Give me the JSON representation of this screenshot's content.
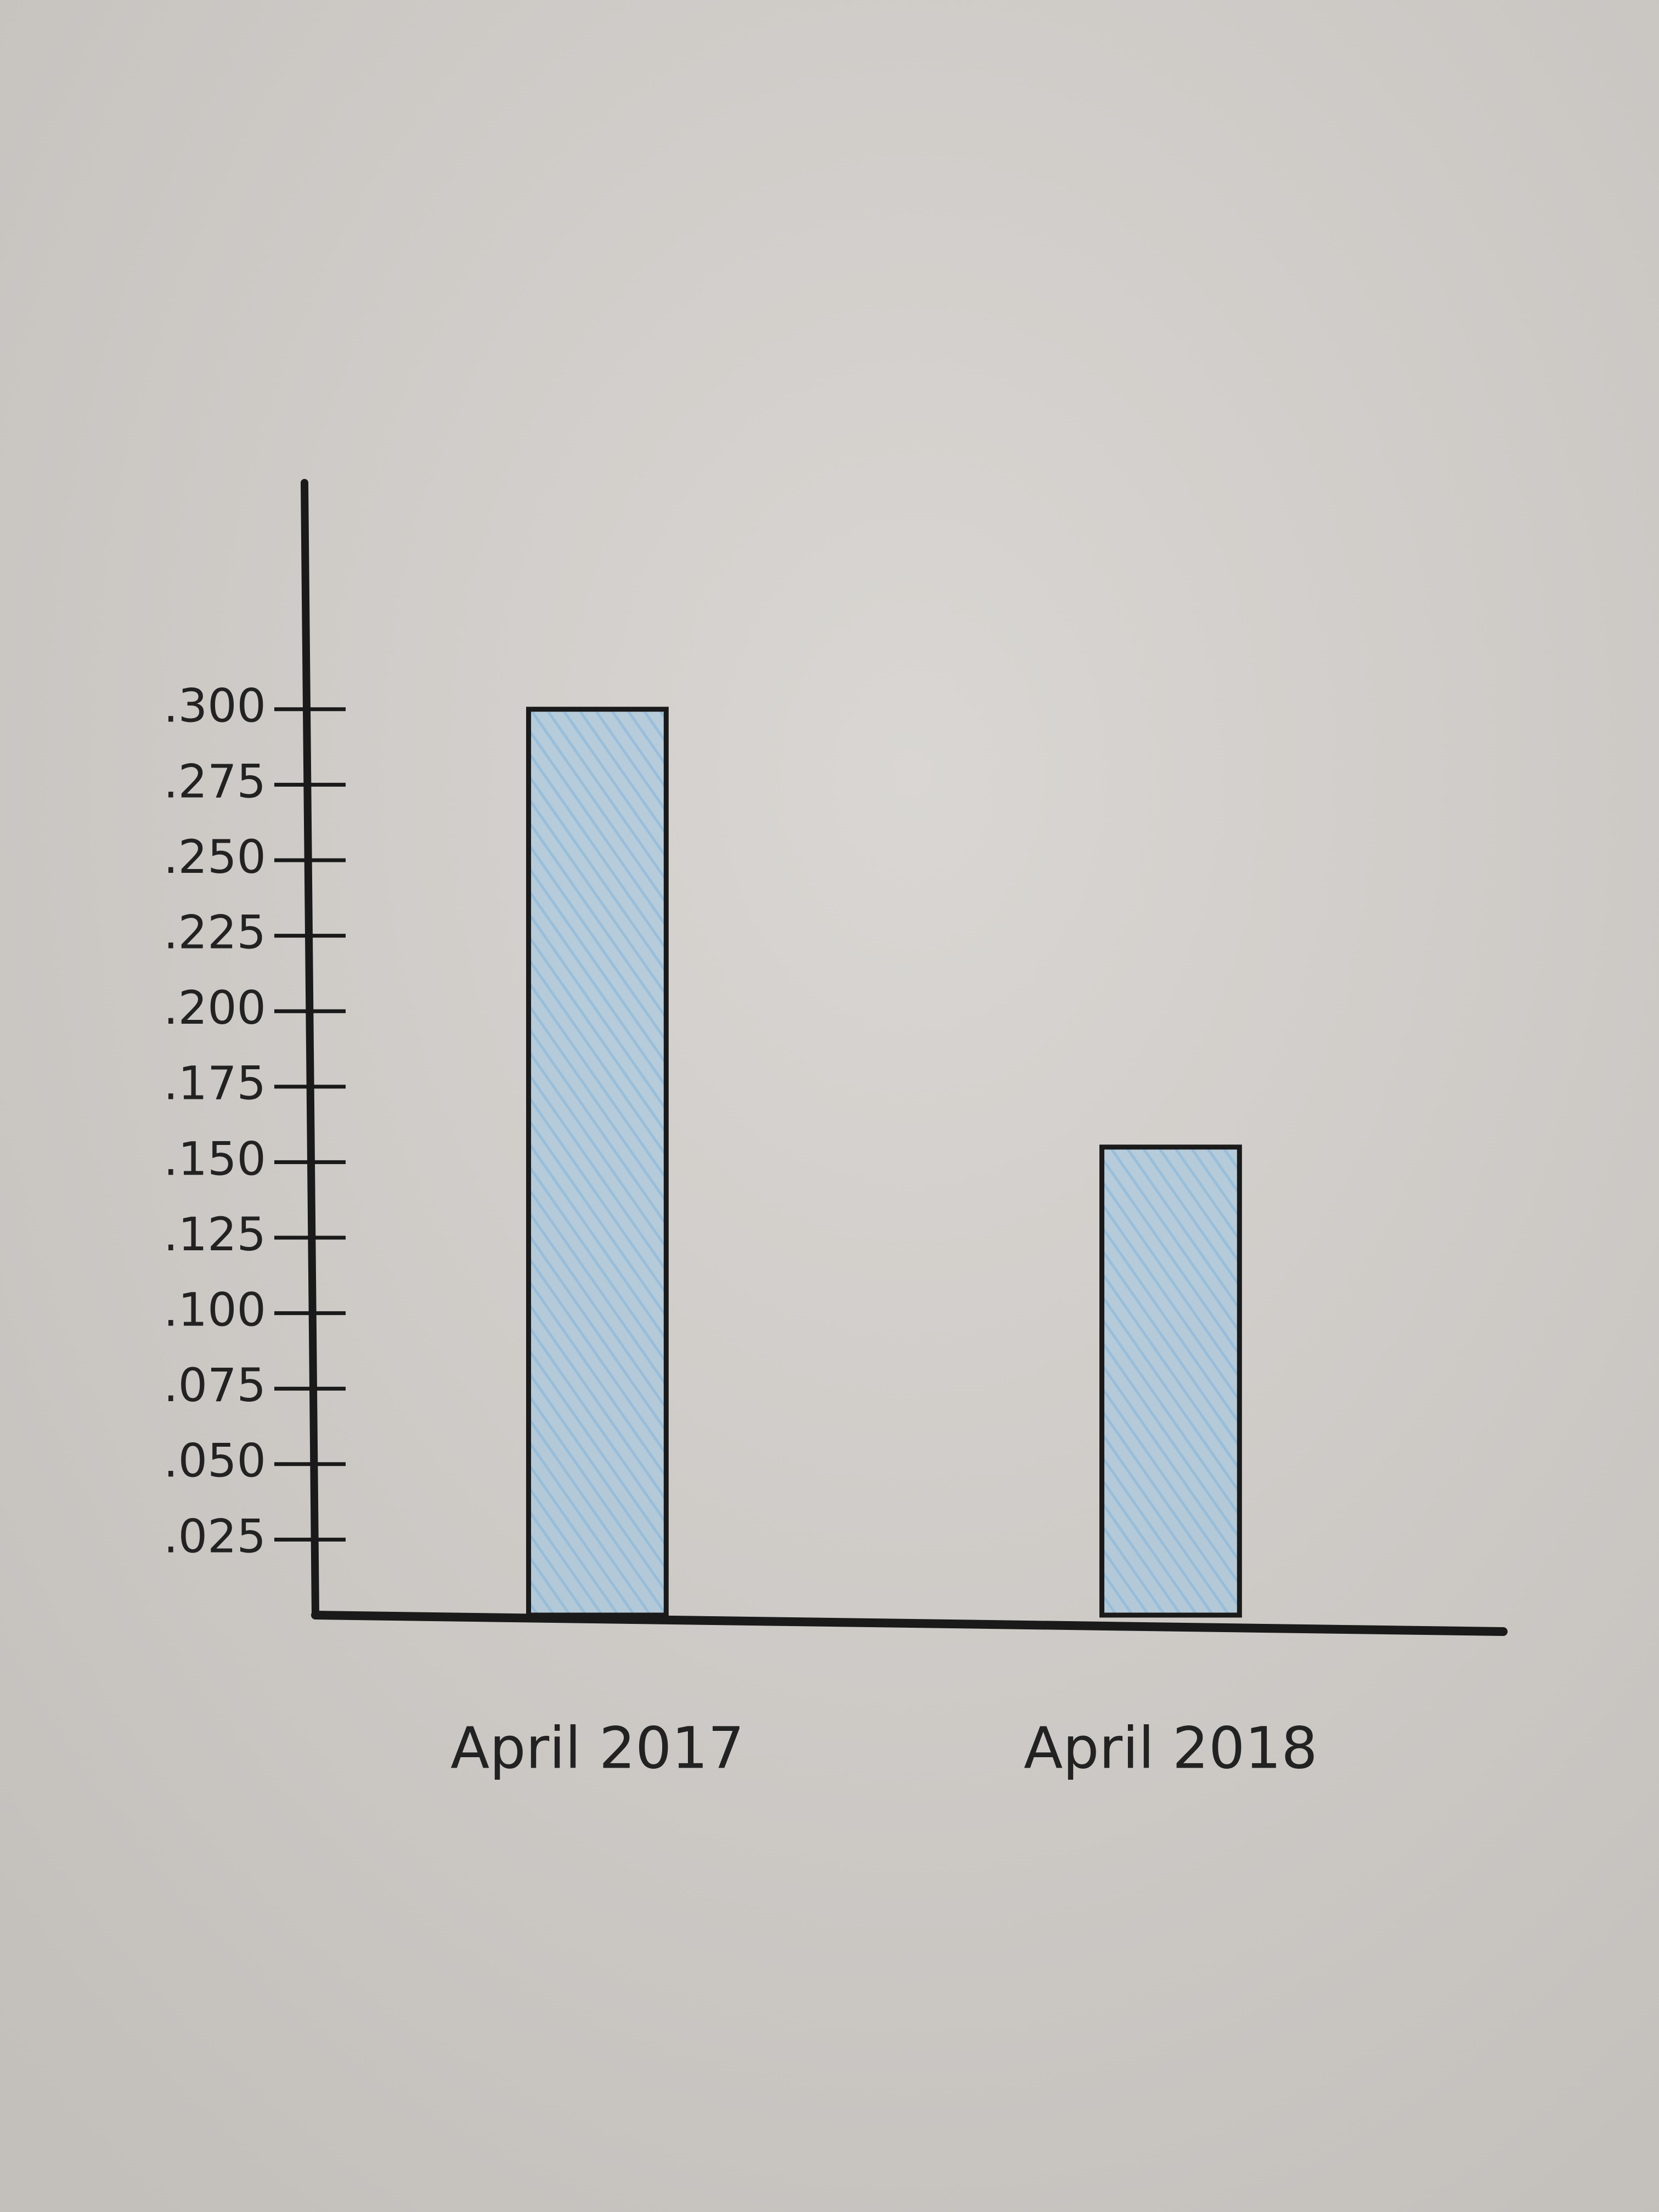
{
  "chart_data": {
    "type": "bar",
    "categories": [
      "April 2017",
      "April 2018"
    ],
    "values": [
      0.3,
      0.155
    ],
    "color": "#9fc9e6",
    "ylim": [
      0,
      0.375
    ],
    "yticks": [
      {
        "value": 0.025,
        "label": ".025"
      },
      {
        "value": 0.05,
        "label": ".050"
      },
      {
        "value": 0.075,
        "label": ".075"
      },
      {
        "value": 0.1,
        "label": ".100"
      },
      {
        "value": 0.125,
        "label": ".125"
      },
      {
        "value": 0.15,
        "label": ".150"
      },
      {
        "value": 0.175,
        "label": ".175"
      },
      {
        "value": 0.2,
        "label": ".200"
      },
      {
        "value": 0.225,
        "label": ".225"
      },
      {
        "value": 0.25,
        "label": ".250"
      },
      {
        "value": 0.275,
        "label": ".275"
      },
      {
        "value": 0.3,
        "label": ".300"
      }
    ],
    "grid": false
  }
}
